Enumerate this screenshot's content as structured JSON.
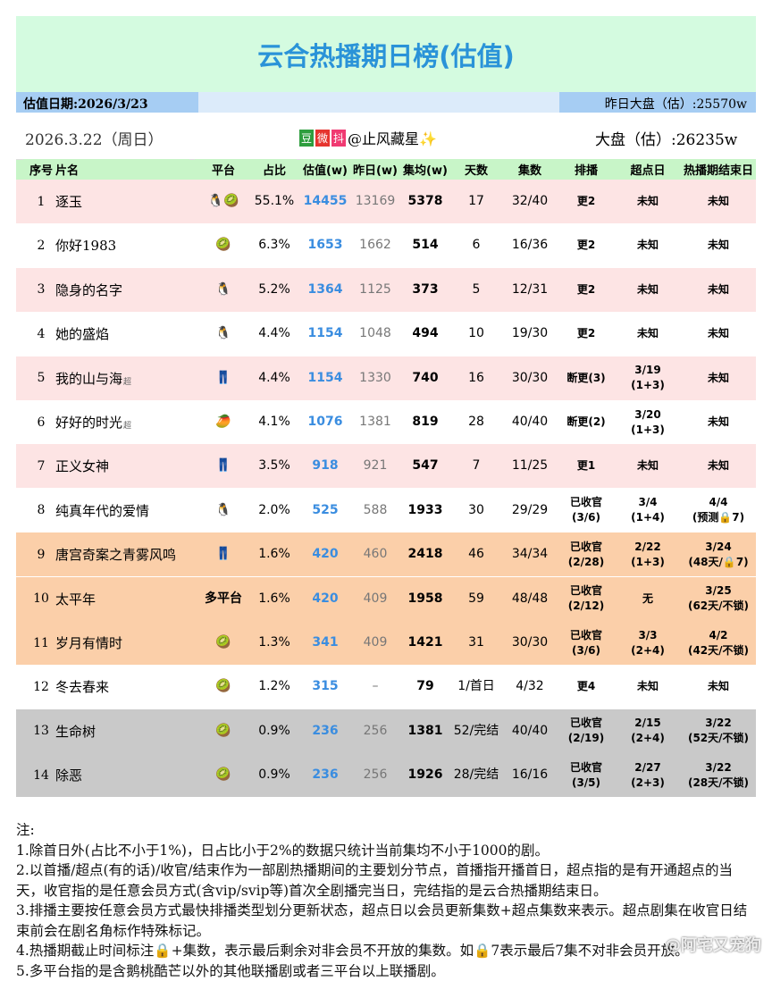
{
  "header": {
    "title": "云合热播期日榜(估值)",
    "date_label": "估值日期:2026/3/23",
    "yesterday_total": "昨日大盘（估）:25570w",
    "day": "2026.3.22（周日）",
    "source_icons": [
      "豆",
      "微",
      "抖"
    ],
    "author": "@止风藏星✨",
    "total": "大盘（估）:26235w"
  },
  "table": {
    "columns": [
      "序号",
      "片名",
      "平台",
      "占比",
      "估值(w)",
      "昨日(w)",
      "集均(w)",
      "天数",
      "集数",
      "排播",
      "超点日",
      "热播期结束日"
    ],
    "rows": [
      {
        "bg": "#fde4e4",
        "cells": [
          "1",
          "逐玉",
          "🐧🥝",
          "55.1%",
          "14455",
          "13169",
          "5378",
          "17",
          "32/40",
          "更2",
          "未知",
          "未知"
        ]
      },
      {
        "bg": "#ffffff",
        "cells": [
          "2",
          "你好1983",
          "🥝",
          "6.3%",
          "1653",
          "1662",
          "514",
          "6",
          "16/36",
          "更2",
          "未知",
          "未知"
        ]
      },
      {
        "bg": "#fde4e4",
        "cells": [
          "3",
          "隐身的名字",
          "🐧",
          "5.2%",
          "1364",
          "1125",
          "373",
          "5",
          "12/31",
          "更2",
          "未知",
          "未知"
        ]
      },
      {
        "bg": "#ffffff",
        "cells": [
          "4",
          "她的盛焰",
          "🐧",
          "4.4%",
          "1154",
          "1048",
          "494",
          "10",
          "19/30",
          "更2",
          "未知",
          "未知"
        ]
      },
      {
        "bg": "#fde4e4",
        "tag": "超",
        "cells": [
          "5",
          "我的山与海",
          "👖",
          "4.4%",
          "1154",
          "1330",
          "740",
          "16",
          "30/30",
          "断更(3)",
          "3/19\n(1+3)",
          "未知"
        ]
      },
      {
        "bg": "#ffffff",
        "tag": "超",
        "cells": [
          "6",
          "好好的时光",
          "🥭",
          "4.1%",
          "1076",
          "1381",
          "819",
          "28",
          "40/40",
          "断更(2)",
          "3/20\n(1+3)",
          "未知"
        ]
      },
      {
        "bg": "#fde4e4",
        "cells": [
          "7",
          "正义女神",
          "👖",
          "3.5%",
          "918",
          "921",
          "547",
          "7",
          "11/25",
          "更1",
          "未知",
          "未知"
        ]
      },
      {
        "bg": "#ffffff",
        "cells": [
          "8",
          "纯真年代的爱情",
          "🐧",
          "2.0%",
          "525",
          "588",
          "1933",
          "30",
          "29/29",
          "已收官\n(3/6)",
          "3/4\n(1+4)",
          "4/4\n(预测🔒7)"
        ]
      },
      {
        "bg": "#fbcfa9",
        "cells": [
          "9",
          "唐宫奇案之青雾风鸣",
          "👖",
          "1.6%",
          "420",
          "460",
          "2418",
          "46",
          "34/34",
          "已收官\n(2/28)",
          "2/22\n(1+3)",
          "3/24\n(48天/🔒7)"
        ]
      },
      {
        "bg": "#fbcfa9",
        "cells": [
          "10",
          "太平年",
          "多平台",
          "1.6%",
          "420",
          "409",
          "1958",
          "59",
          "48/48",
          "已收官\n(2/12)",
          "无",
          "3/25\n(62天/不锁)"
        ]
      },
      {
        "bg": "#fbcfa9",
        "cells": [
          "11",
          "岁月有情时",
          "🥝",
          "1.3%",
          "341",
          "409",
          "1421",
          "31",
          "30/30",
          "已收官\n(3/6)",
          "3/3\n(2+4)",
          "4/2\n(42天/不锁)"
        ]
      },
      {
        "bg": "#ffffff",
        "cells": [
          "12",
          "冬去春来",
          "🥝",
          "1.2%",
          "315",
          "–",
          "79",
          "1/首日",
          "4/32",
          "更4",
          "未知",
          "未知"
        ]
      },
      {
        "bg": "#c9c9c9",
        "cells": [
          "13",
          "生命树",
          "🥝",
          "0.9%",
          "236",
          "256",
          "1381",
          "52/完结",
          "40/40",
          "已收官\n(2/19)",
          "2/15\n(2+4)",
          "3/22\n(52天/不锁)"
        ]
      },
      {
        "bg": "#c9c9c9",
        "cells": [
          "14",
          "除恶",
          "🥝",
          "0.9%",
          "236",
          "256",
          "1926",
          "28/完结",
          "16/16",
          "已收官\n(3/5)",
          "2/27\n(2+3)",
          "3/22\n(28天/不锁)"
        ]
      }
    ]
  },
  "notes": {
    "heading": "注:",
    "items": [
      "1.除首日外(占比不小于1%)，日占比小于2%的数据只统计当前集均不小于1000的剧。",
      "2.以首播/超点(有的话)/收官/结束作为一部剧热播期间的主要划分节点，首播指开播首日，超点指的是有开通超点的当天，收官指的是任意会员方式(含vip/svip等)首次全剧播完当日，完结指的是云合热播期结束日。",
      "3.排播主要按任意会员方式最快排播类型划分更新状态，超点日以会员更新集数+超点集数来表示。超点剧集在收官日结束前会在剧名角标作特殊标记。",
      "4.热播期截止时间标注🔒+集数，表示最后剩余对非会员不开放的集数。如🔒7表示最后7集不对非会员开放。",
      "5.多平台指的是含鹅桃酷芒以外的其他联播剧或者三平台以上联播剧。"
    ]
  },
  "watermark": "@阿宅又宠狗"
}
